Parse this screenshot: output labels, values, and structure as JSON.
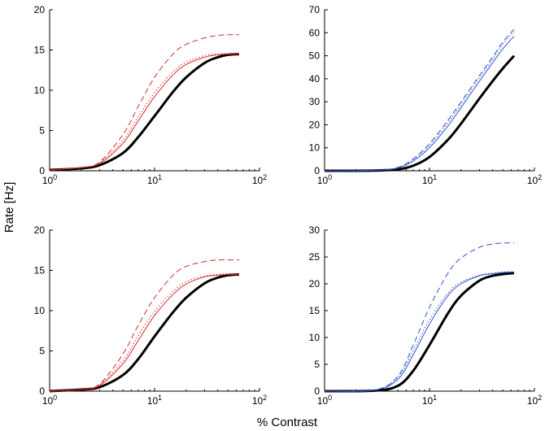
{
  "figure": {
    "ylabel": "Rate [Hz]",
    "xlabel": "% Contrast"
  },
  "chart_data": [
    {
      "type": "line",
      "panel": "top-left",
      "xscale": "log",
      "xlim": [
        1,
        100
      ],
      "ylim": [
        0,
        20
      ],
      "xticks": [
        1,
        10,
        100
      ],
      "yticks": [
        0,
        5,
        10,
        15,
        20
      ],
      "ytick_labels": [
        "0",
        "5",
        "10",
        "15",
        "20"
      ],
      "series": [
        {
          "name": "thick black",
          "color": "#000000",
          "style": "solid",
          "weight": "thick",
          "x": [
            1,
            2,
            3,
            5,
            7,
            10,
            15,
            20,
            30,
            40,
            50,
            64
          ],
          "y": [
            0.1,
            0.3,
            0.7,
            2.2,
            4.2,
            6.8,
            9.8,
            11.6,
            13.4,
            14.1,
            14.4,
            14.5
          ]
        },
        {
          "name": "thin solid",
          "color": "#d62728",
          "style": "solid",
          "weight": "thin",
          "x": [
            1,
            2,
            3,
            5,
            7,
            10,
            15,
            20,
            30,
            40,
            50,
            64
          ],
          "y": [
            0.1,
            0.4,
            0.9,
            3.4,
            6.2,
            9.2,
            11.9,
            13.2,
            14.1,
            14.4,
            14.5,
            14.5
          ]
        },
        {
          "name": "dotted",
          "color": "#d62728",
          "style": "dotted",
          "weight": "thin",
          "x": [
            1,
            2,
            3,
            5,
            7,
            10,
            15,
            20,
            30,
            40,
            50,
            64
          ],
          "y": [
            0.1,
            0.4,
            1.0,
            3.8,
            6.7,
            9.7,
            12.3,
            13.5,
            14.3,
            14.5,
            14.6,
            14.6
          ]
        },
        {
          "name": "dashed",
          "color": "#d62728",
          "style": "dashed",
          "weight": "thin",
          "x": [
            1,
            2,
            3,
            5,
            7,
            10,
            15,
            20,
            30,
            40,
            50,
            64
          ],
          "y": [
            0.1,
            0.4,
            1.1,
            4.5,
            8.0,
            11.6,
            14.5,
            15.7,
            16.5,
            16.8,
            16.9,
            16.9
          ]
        }
      ]
    },
    {
      "type": "line",
      "panel": "top-right",
      "xscale": "log",
      "xlim": [
        1,
        100
      ],
      "ylim": [
        0,
        70
      ],
      "xticks": [
        1,
        10,
        100
      ],
      "yticks": [
        0,
        10,
        20,
        30,
        40,
        50,
        60,
        70
      ],
      "ytick_labels": [
        "0",
        "10",
        "20",
        "30",
        "40",
        "50",
        "60",
        "70"
      ],
      "series": [
        {
          "name": "thick black",
          "color": "#000000",
          "style": "solid",
          "weight": "thick",
          "x": [
            1,
            3,
            5,
            7,
            10,
            15,
            20,
            30,
            40,
            50,
            64
          ],
          "y": [
            0,
            0.1,
            0.6,
            2.2,
            6.0,
            13.5,
            20.5,
            31.5,
            39.0,
            44.5,
            50.0
          ]
        },
        {
          "name": "thin solid",
          "color": "#3355cc",
          "style": "solid",
          "weight": "thin",
          "x": [
            1,
            3,
            5,
            7,
            10,
            15,
            20,
            30,
            40,
            50,
            64
          ],
          "y": [
            0,
            0.2,
            1.2,
            4.2,
            10.0,
            19.5,
            27.5,
            39.0,
            47.0,
            53.0,
            58.5
          ]
        },
        {
          "name": "dotted",
          "color": "#3355cc",
          "style": "dotted",
          "weight": "thin",
          "x": [
            1,
            3,
            5,
            7,
            10,
            15,
            20,
            30,
            40,
            50,
            64
          ],
          "y": [
            0,
            0.2,
            1.4,
            4.8,
            11.0,
            21.0,
            29.0,
            40.5,
            48.5,
            55.0,
            60.5
          ]
        },
        {
          "name": "dashed",
          "color": "#3355cc",
          "style": "dashed",
          "weight": "thin",
          "x": [
            1,
            3,
            5,
            7,
            10,
            15,
            20,
            30,
            40,
            50,
            64
          ],
          "y": [
            0,
            0.2,
            1.5,
            5.2,
            11.8,
            22.0,
            30.0,
            41.5,
            49.5,
            56.0,
            61.5
          ]
        }
      ]
    },
    {
      "type": "line",
      "panel": "bottom-left",
      "xscale": "log",
      "xlim": [
        1,
        100
      ],
      "ylim": [
        0,
        20
      ],
      "xticks": [
        1,
        10,
        100
      ],
      "yticks": [
        0,
        5,
        10,
        15,
        20
      ],
      "ytick_labels": [
        "0",
        "5",
        "10",
        "15",
        "20"
      ],
      "series": [
        {
          "name": "thick black",
          "color": "#000000",
          "style": "solid",
          "weight": "thick",
          "x": [
            1,
            2,
            3,
            5,
            7,
            10,
            15,
            20,
            30,
            40,
            50,
            64
          ],
          "y": [
            0.0,
            0.2,
            0.5,
            2.0,
            4.0,
            6.8,
            9.8,
            11.6,
            13.4,
            14.1,
            14.4,
            14.5
          ]
        },
        {
          "name": "thin solid",
          "color": "#d62728",
          "style": "solid",
          "weight": "thin",
          "x": [
            1,
            2,
            3,
            5,
            7,
            10,
            15,
            20,
            30,
            40,
            50,
            64
          ],
          "y": [
            0.0,
            0.2,
            0.7,
            3.4,
            6.3,
            9.4,
            12.0,
            13.3,
            14.2,
            14.4,
            14.5,
            14.5
          ]
        },
        {
          "name": "dotted",
          "color": "#d62728",
          "style": "dotted",
          "weight": "thin",
          "x": [
            1,
            2,
            3,
            5,
            7,
            10,
            15,
            20,
            30,
            40,
            50,
            64
          ],
          "y": [
            0.0,
            0.2,
            0.8,
            3.8,
            6.9,
            9.9,
            12.4,
            13.6,
            14.3,
            14.5,
            14.6,
            14.6
          ]
        },
        {
          "name": "dashed",
          "color": "#d62728",
          "style": "dashed",
          "weight": "thin",
          "x": [
            1,
            2,
            3,
            5,
            7,
            10,
            15,
            20,
            30,
            40,
            50,
            64
          ],
          "y": [
            0.0,
            0.2,
            0.9,
            4.6,
            8.2,
            11.6,
            14.4,
            15.5,
            16.1,
            16.3,
            16.3,
            16.3
          ]
        }
      ]
    },
    {
      "type": "line",
      "panel": "bottom-right",
      "xscale": "log",
      "xlim": [
        1,
        100
      ],
      "ylim": [
        0,
        30
      ],
      "xticks": [
        1,
        10,
        100
      ],
      "yticks": [
        0,
        5,
        10,
        15,
        20,
        25,
        30
      ],
      "ytick_labels": [
        "0",
        "5",
        "10",
        "15",
        "20",
        "25",
        "30"
      ],
      "series": [
        {
          "name": "thick black",
          "color": "#000000",
          "style": "solid",
          "weight": "thick",
          "x": [
            1,
            3,
            5,
            7,
            10,
            15,
            20,
            30,
            40,
            50,
            64
          ],
          "y": [
            0,
            0.1,
            1.0,
            3.8,
            8.6,
            14.5,
            17.8,
            20.6,
            21.5,
            21.8,
            22.0
          ]
        },
        {
          "name": "thin solid",
          "color": "#3355cc",
          "style": "solid",
          "weight": "thin",
          "x": [
            1,
            3,
            5,
            7,
            10,
            15,
            20,
            30,
            40,
            50,
            64
          ],
          "y": [
            0,
            0.2,
            2.2,
            6.8,
            12.5,
            17.8,
            20.0,
            21.5,
            21.9,
            22.1,
            22.2
          ]
        },
        {
          "name": "dotted",
          "color": "#3355cc",
          "style": "dotted",
          "weight": "thin",
          "x": [
            1,
            3,
            5,
            7,
            10,
            15,
            20,
            30,
            40,
            50,
            64
          ],
          "y": [
            0,
            0.2,
            2.6,
            7.6,
            13.3,
            18.3,
            20.3,
            21.6,
            22.0,
            22.2,
            22.3
          ]
        },
        {
          "name": "dashed",
          "color": "#3355cc",
          "style": "dashed",
          "weight": "thin",
          "x": [
            1,
            3,
            5,
            7,
            10,
            15,
            20,
            30,
            40,
            50,
            64
          ],
          "y": [
            0,
            0.2,
            2.8,
            8.6,
            15.6,
            22.0,
            24.8,
            26.8,
            27.4,
            27.6,
            27.6
          ]
        }
      ]
    }
  ]
}
